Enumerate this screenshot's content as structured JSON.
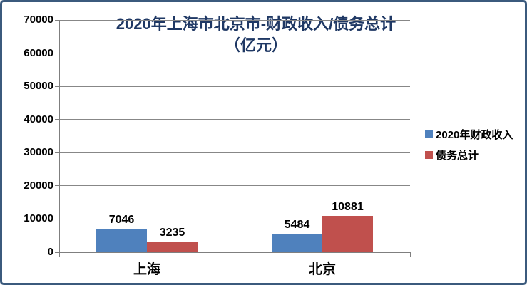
{
  "chart_data": {
    "type": "bar",
    "title": "2020年上海市北京市-财政收入/债务总计（亿元）",
    "title_line1": "2020年上海市北京市-财政收入/债务总计",
    "title_line2": "（亿元）",
    "categories": [
      "上海",
      "北京"
    ],
    "series": [
      {
        "name": "2020年财政收入",
        "color": "#4F81BD",
        "values": [
          7046,
          5484
        ]
      },
      {
        "name": "债务总计",
        "color": "#C0504D",
        "values": [
          3235,
          10881
        ]
      }
    ],
    "data_labels": [
      [
        "7046",
        "5484"
      ],
      [
        "3235",
        "10881"
      ]
    ],
    "ylim": [
      0,
      70000
    ],
    "ytick_interval": 10000,
    "ytick_labels": [
      "0",
      "10000",
      "20000",
      "30000",
      "40000",
      "50000",
      "60000",
      "70000"
    ],
    "grid": true,
    "legend_position": "right"
  },
  "colors": {
    "title": "#1F3864",
    "border": "#3B5A7D",
    "gridline": "#878787",
    "axis": "#7F7F7F",
    "series_blue": "#4F81BD",
    "series_red": "#C0504D",
    "label_text": "#000000"
  }
}
